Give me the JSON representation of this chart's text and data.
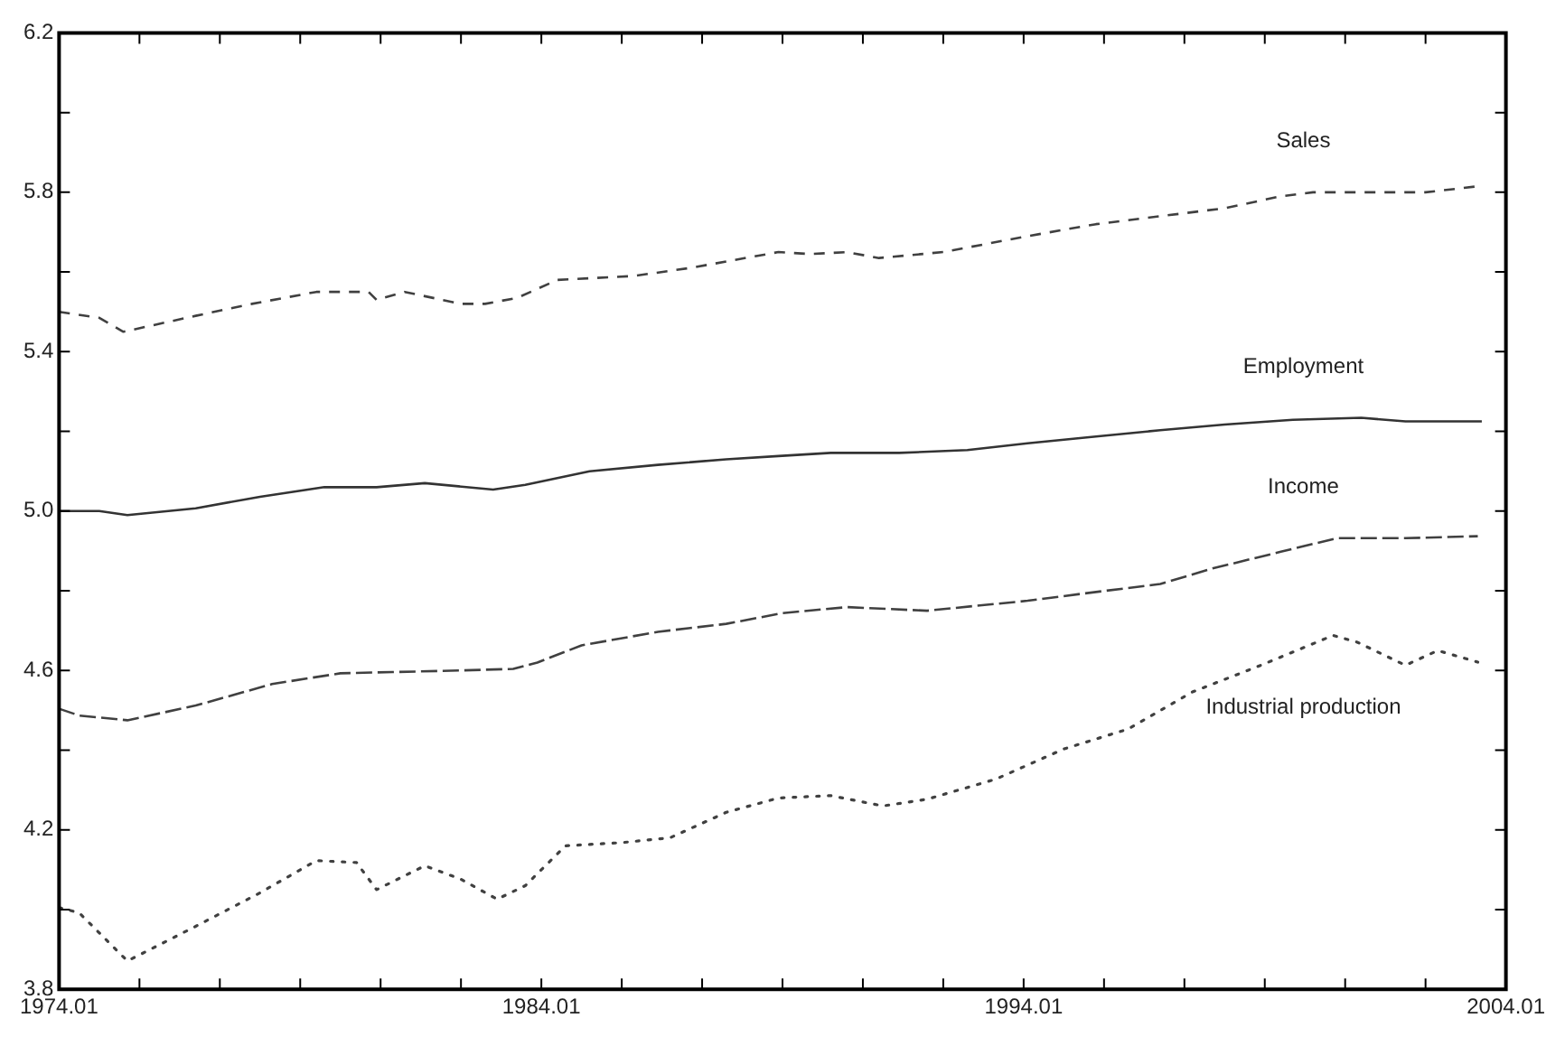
{
  "chart_data": {
    "type": "line",
    "grid": false,
    "marker": "none",
    "legend": false,
    "xlim": [
      "1974-01",
      "2004-01"
    ],
    "xticks": [
      {
        "value": "1974-01",
        "label": "1974.01"
      },
      {
        "value": "1975-09",
        "label": null
      },
      {
        "value": "1977-05",
        "label": null
      },
      {
        "value": "1979-01",
        "label": null
      },
      {
        "value": "1980-09",
        "label": null
      },
      {
        "value": "1982-05",
        "label": null
      },
      {
        "value": "1984-01",
        "label": "1984.01"
      },
      {
        "value": "1985-09",
        "label": null
      },
      {
        "value": "1987-05",
        "label": null
      },
      {
        "value": "1989-01",
        "label": null
      },
      {
        "value": "1990-09",
        "label": null
      },
      {
        "value": "1992-05",
        "label": null
      },
      {
        "value": "1994-01",
        "label": "1994.01"
      },
      {
        "value": "1995-09",
        "label": null
      },
      {
        "value": "1997-05",
        "label": null
      },
      {
        "value": "1999-01",
        "label": null
      },
      {
        "value": "2000-09",
        "label": null
      },
      {
        "value": "2002-05",
        "label": null
      },
      {
        "value": "2004-01",
        "label": "2004.01"
      }
    ],
    "ylim": [
      3.8,
      6.2
    ],
    "yticks": [
      3.8,
      {
        "value": 4.0,
        "label": null
      },
      4.2,
      {
        "value": 4.4,
        "label": null
      },
      4.6,
      {
        "value": 4.8,
        "label": null
      },
      {
        "value": 5,
        "label": "5.0"
      },
      {
        "value": 5.2,
        "label": null
      },
      5.4,
      {
        "value": 5.6,
        "label": null
      },
      5.8,
      {
        "value": 6.0,
        "label": null
      },
      6.2
    ],
    "series": [
      {
        "name": "Sales",
        "color": "#404040",
        "line_style": "dashed",
        "x": [
          "1974-01",
          "1974-11",
          "1975-05",
          "1976-11",
          "1978-01",
          "1979-05",
          "1980-06",
          "1980-08",
          "1981-03",
          "1982-05",
          "1982-11",
          "1983-07",
          "1984-05",
          "1985-12",
          "1987-02",
          "1988-12",
          "1989-08",
          "1990-05",
          "1991-01",
          "1992-05",
          "1994-02",
          "1995-07",
          "1996-11",
          "1998-03",
          "1999-05",
          "2000-01",
          "2001-06",
          "2002-05",
          "2003-06"
        ],
        "values": [
          5.5,
          5.485,
          5.45,
          5.49,
          5.52,
          5.55,
          5.55,
          5.53,
          5.55,
          5.52,
          5.52,
          5.535,
          5.58,
          5.59,
          5.61,
          5.65,
          5.645,
          5.65,
          5.635,
          5.65,
          5.69,
          5.72,
          5.74,
          5.76,
          5.79,
          5.8,
          5.8,
          5.8,
          5.815
        ]
      },
      {
        "name": "Employment",
        "color": "#333333",
        "line_style": "solid",
        "x": [
          "1974-01",
          "1974-11",
          "1975-06",
          "1976-11",
          "1978-03",
          "1979-07",
          "1980-08",
          "1981-08",
          "1983-01",
          "1983-09",
          "1985-01",
          "1986-06",
          "1987-11",
          "1988-12",
          "1990-01",
          "1991-06",
          "1992-11",
          "1994-02",
          "1995-07",
          "1996-11",
          "1998-03",
          "1999-08",
          "2001-01",
          "2001-12",
          "2003-07"
        ],
        "values": [
          5.0,
          5.0,
          4.99,
          5.007,
          5.036,
          5.06,
          5.06,
          5.07,
          5.054,
          5.066,
          5.1,
          5.116,
          5.13,
          5.138,
          5.146,
          5.146,
          5.153,
          5.17,
          5.187,
          5.203,
          5.217,
          5.229,
          5.234,
          5.225,
          5.225
        ]
      },
      {
        "name": "Income",
        "color": "#404040",
        "line_style": "longdash",
        "x": [
          "1974-01",
          "1974-06",
          "1975-06",
          "1976-11",
          "1978-06",
          "1979-11",
          "1980-12",
          "1982-05",
          "1983-06",
          "1983-12",
          "1984-11",
          "1986-06",
          "1987-11",
          "1989-01",
          "1990-05",
          "1992-01",
          "1994-02",
          "1995-07",
          "1996-11",
          "1997-12",
          "1999-05",
          "2000-07",
          "2001-12",
          "2003-06"
        ],
        "values": [
          4.504,
          4.487,
          4.475,
          4.512,
          4.566,
          4.593,
          4.596,
          4.6,
          4.604,
          4.62,
          4.663,
          4.697,
          4.717,
          4.744,
          4.759,
          4.75,
          4.775,
          4.797,
          4.817,
          4.856,
          4.898,
          4.932,
          4.932,
          4.937
        ]
      },
      {
        "name": "Industrial production",
        "color": "#404040",
        "line_style": "dotted",
        "x": [
          "1974-01",
          "1974-06",
          "1975-06",
          "1976-11",
          "1978-03",
          "1979-05",
          "1980-03",
          "1980-08",
          "1981-08",
          "1982-05",
          "1983-02",
          "1983-09",
          "1984-07",
          "1985-09",
          "1986-09",
          "1987-11",
          "1988-12",
          "1990-01",
          "1991-02",
          "1992-01",
          "1993-06",
          "1994-11",
          "1996-03",
          "1997-07",
          "1998-12",
          "2000-06",
          "2000-12",
          "2001-12",
          "2002-08",
          "2003-06"
        ],
        "values": [
          4.005,
          3.992,
          3.871,
          3.958,
          4.042,
          4.123,
          4.118,
          4.05,
          4.11,
          4.076,
          4.026,
          4.06,
          4.16,
          4.168,
          4.18,
          4.244,
          4.28,
          4.286,
          4.26,
          4.277,
          4.327,
          4.403,
          4.453,
          4.546,
          4.613,
          4.688,
          4.671,
          4.613,
          4.65,
          4.621
        ]
      }
    ]
  }
}
